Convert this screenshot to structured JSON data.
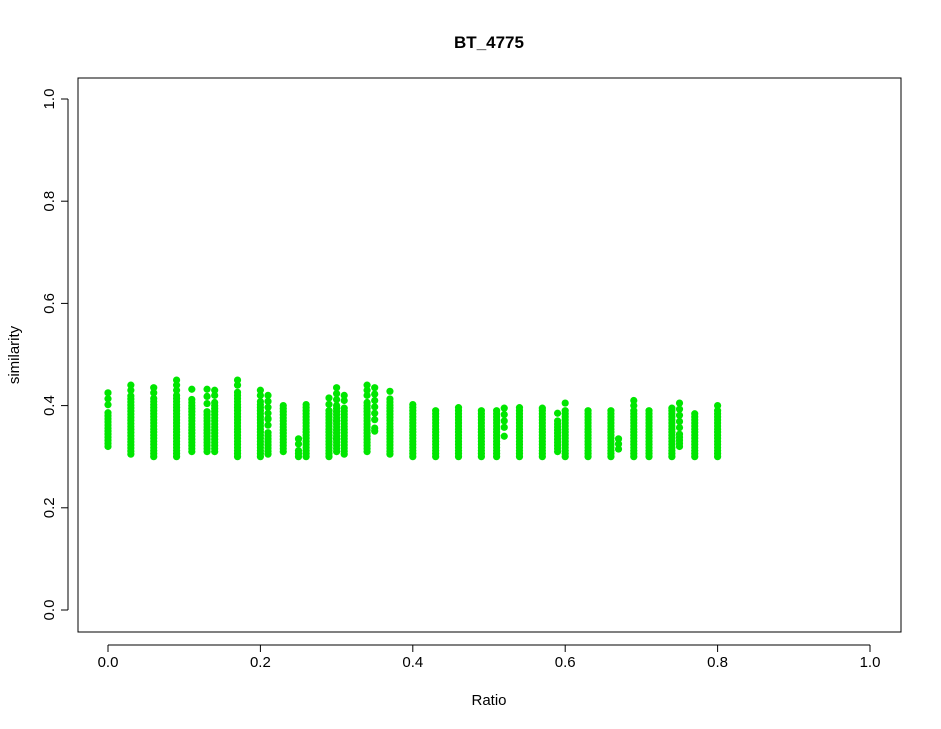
{
  "chart_data": {
    "type": "scatter",
    "title": "BT_4775",
    "xlabel": "Ratio",
    "ylabel": "similarity",
    "xlim": [
      0.0,
      1.0
    ],
    "ylim": [
      0.0,
      1.0
    ],
    "xticks": [
      "0.0",
      "0.2",
      "0.4",
      "0.6",
      "0.8",
      "1.0"
    ],
    "yticks": [
      "0.0",
      "0.2",
      "0.4",
      "0.6",
      "0.8",
      "1.0"
    ],
    "point_color": "#00e600",
    "grid": false,
    "columns": [
      {
        "x": 0.0,
        "min": 0.32,
        "max": 0.39,
        "top": 0.425,
        "extras": []
      },
      {
        "x": 0.03,
        "min": 0.305,
        "max": 0.42,
        "top": 0.44,
        "extras": []
      },
      {
        "x": 0.06,
        "min": 0.3,
        "max": 0.415,
        "top": 0.435,
        "extras": []
      },
      {
        "x": 0.09,
        "min": 0.3,
        "max": 0.42,
        "top": 0.45,
        "extras": []
      },
      {
        "x": 0.11,
        "min": 0.31,
        "max": 0.415,
        "top": 0.432,
        "extras": []
      },
      {
        "x": 0.13,
        "min": 0.31,
        "max": 0.39,
        "top": 0.432,
        "extras": []
      },
      {
        "x": 0.14,
        "min": 0.31,
        "max": 0.41,
        "top": 0.43,
        "extras": []
      },
      {
        "x": 0.17,
        "min": 0.3,
        "max": 0.43,
        "top": 0.45,
        "extras": []
      },
      {
        "x": 0.2,
        "min": 0.3,
        "max": 0.41,
        "top": 0.43,
        "extras": []
      },
      {
        "x": 0.21,
        "min": 0.305,
        "max": 0.35,
        "top": 0.42,
        "extras": [
          0.375
        ]
      },
      {
        "x": 0.23,
        "min": 0.31,
        "max": 0.4,
        "top": 0.4,
        "extras": []
      },
      {
        "x": 0.25,
        "min": 0.3,
        "max": 0.315,
        "top": 0.335,
        "extras": []
      },
      {
        "x": 0.26,
        "min": 0.3,
        "max": 0.405,
        "top": 0.405,
        "extras": []
      },
      {
        "x": 0.29,
        "min": 0.3,
        "max": 0.39,
        "top": 0.415,
        "extras": []
      },
      {
        "x": 0.3,
        "min": 0.31,
        "max": 0.4,
        "top": 0.435,
        "extras": [
          0.37,
          0.335
        ]
      },
      {
        "x": 0.31,
        "min": 0.305,
        "max": 0.4,
        "top": 0.42,
        "extras": []
      },
      {
        "x": 0.34,
        "min": 0.31,
        "max": 0.41,
        "top": 0.44,
        "extras": []
      },
      {
        "x": 0.35,
        "min": 0.35,
        "max": 0.36,
        "top": 0.435,
        "extras": []
      },
      {
        "x": 0.37,
        "min": 0.305,
        "max": 0.415,
        "top": 0.428,
        "extras": []
      },
      {
        "x": 0.4,
        "min": 0.3,
        "max": 0.405,
        "top": 0.405,
        "extras": []
      },
      {
        "x": 0.43,
        "min": 0.3,
        "max": 0.395,
        "top": 0.395,
        "extras": []
      },
      {
        "x": 0.46,
        "min": 0.3,
        "max": 0.4,
        "top": 0.4,
        "extras": []
      },
      {
        "x": 0.49,
        "min": 0.3,
        "max": 0.39,
        "top": 0.39,
        "extras": []
      },
      {
        "x": 0.51,
        "min": 0.3,
        "max": 0.385,
        "top": 0.39,
        "extras": []
      },
      {
        "x": 0.52,
        "min": 0.34,
        "max": 0.345,
        "top": 0.395,
        "extras": []
      },
      {
        "x": 0.54,
        "min": 0.3,
        "max": 0.4,
        "top": 0.4,
        "extras": []
      },
      {
        "x": 0.57,
        "min": 0.3,
        "max": 0.39,
        "top": 0.395,
        "extras": []
      },
      {
        "x": 0.59,
        "min": 0.31,
        "max": 0.37,
        "top": 0.385,
        "extras": []
      },
      {
        "x": 0.6,
        "min": 0.3,
        "max": 0.395,
        "top": 0.405,
        "extras": []
      },
      {
        "x": 0.63,
        "min": 0.3,
        "max": 0.395,
        "top": 0.395,
        "extras": []
      },
      {
        "x": 0.66,
        "min": 0.3,
        "max": 0.39,
        "top": 0.39,
        "extras": []
      },
      {
        "x": 0.67,
        "min": 0.315,
        "max": 0.315,
        "top": 0.335,
        "extras": []
      },
      {
        "x": 0.69,
        "min": 0.3,
        "max": 0.39,
        "top": 0.41,
        "extras": []
      },
      {
        "x": 0.71,
        "min": 0.3,
        "max": 0.39,
        "top": 0.39,
        "extras": []
      },
      {
        "x": 0.74,
        "min": 0.3,
        "max": 0.39,
        "top": 0.395,
        "extras": []
      },
      {
        "x": 0.75,
        "min": 0.32,
        "max": 0.345,
        "top": 0.405,
        "extras": []
      },
      {
        "x": 0.77,
        "min": 0.3,
        "max": 0.385,
        "top": 0.385,
        "extras": []
      },
      {
        "x": 0.8,
        "min": 0.3,
        "max": 0.395,
        "top": 0.4,
        "extras": []
      }
    ]
  }
}
